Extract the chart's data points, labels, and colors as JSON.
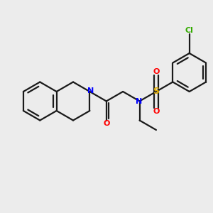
{
  "bg_color": "#ececec",
  "bond_color": "#1a1a1a",
  "N_color": "#0000ff",
  "O_color": "#ff0000",
  "S_color": "#ddaa00",
  "Cl_color": "#33aa00",
  "line_width": 1.6,
  "figsize": [
    3.0,
    3.0
  ],
  "dpi": 100,
  "xlim": [
    -3.8,
    4.2
  ],
  "ylim": [
    -2.8,
    2.8
  ]
}
